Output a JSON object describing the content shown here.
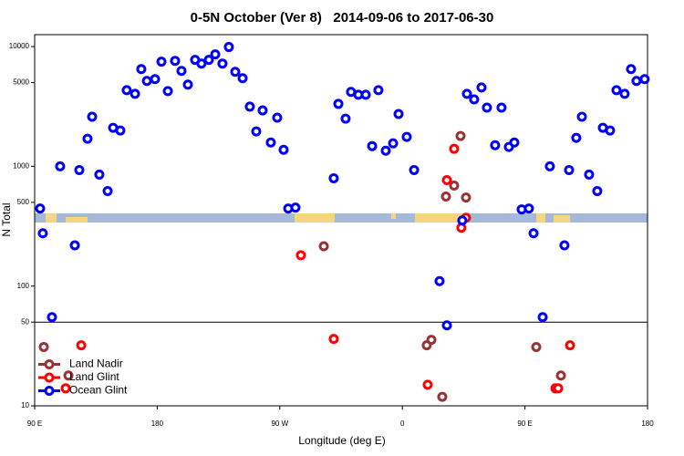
{
  "chart_data": {
    "type": "scatter",
    "title": "0-5N October (Ver 8)   2014-09-06 to 2017-06-30",
    "x_label": "Longitude (deg E)",
    "y_label": "N Total",
    "xlim": [
      90,
      540
    ],
    "xticks": [
      {
        "value": 90,
        "label": "90 E"
      },
      {
        "value": 180,
        "label": "180"
      },
      {
        "value": 270,
        "label": "90 W"
      },
      {
        "value": 360,
        "label": "0"
      },
      {
        "value": 450,
        "label": "90 E"
      },
      {
        "value": 540,
        "label": "180"
      }
    ],
    "ylim": [
      10,
      12570
    ],
    "y_log": true,
    "yticks": [
      10,
      50,
      100,
      500,
      1000,
      5000,
      10000
    ],
    "hline": 50,
    "legend": "lower left",
    "series": [
      {
        "name": "Land Nadir",
        "color": "#993333",
        "x": [
          96.7,
          114.8,
          302.3,
          377.9,
          381.3,
          389.3,
          392.0,
          398.0,
          402.7,
          406.7,
          458.3,
          476.4
        ],
        "values": [
          31,
          17.9,
          215,
          32,
          35.6,
          11.9,
          559,
          690,
          1790,
          548,
          31,
          17.9
        ]
      },
      {
        "name": "Land Glint",
        "color": "#ff0000",
        "x": [
          112.8,
          124.2,
          285.5,
          309.6,
          378.6,
          392.7,
          398.0,
          403.3,
          406.7,
          472.4,
          474.4,
          483.1
        ],
        "values": [
          14,
          32,
          181,
          36.2,
          15,
          767,
          1400,
          307,
          372,
          14,
          14,
          32
        ]
      },
      {
        "name": "Ocean Glint",
        "color": "#0000ff",
        "x": [
          94.0,
          96.0,
          102.7,
          108.7,
          119.5,
          122.8,
          128.8,
          132.2,
          137.5,
          143.6,
          147.6,
          152.9,
          157.6,
          163.7,
          168.3,
          172.4,
          178.4,
          183.1,
          187.8,
          193.1,
          197.8,
          202.5,
          207.8,
          212.5,
          217.9,
          222.6,
          227.9,
          232.6,
          237.3,
          242.7,
          248.0,
          252.7,
          257.4,
          263.4,
          268.1,
          272.8,
          276.2,
          281.5,
          309.6,
          313.0,
          318.3,
          322.3,
          327.7,
          333.1,
          337.8,
          342.4,
          347.8,
          353.2,
          357.2,
          363.2,
          368.6,
          387.3,
          392.7,
          404.0,
          407.4,
          412.7,
          418.1,
          422.1,
          428.1,
          432.8,
          438.2,
          442.2,
          447.6,
          452.9,
          456.3,
          463.0,
          468.3,
          479.0,
          482.4,
          487.7,
          491.8,
          497.1,
          503.1,
          507.2,
          512.5,
          517.2,
          523.2,
          527.9,
          531.9,
          537.9
        ],
        "values": [
          444,
          276,
          55,
          1000,
          219,
          931,
          1698,
          2594,
          853,
          621,
          2099,
          1991,
          4325,
          4027,
          6486,
          5164,
          5346,
          7476,
          4250,
          7600,
          6266,
          4808,
          7740,
          7210,
          7740,
          8610,
          7210,
          9910,
          6150,
          5440,
          3150,
          1955,
          2930,
          1580,
          2550,
          1373,
          444,
          452,
          795,
          3320,
          2500,
          4180,
          3960,
          3960,
          1475,
          4325,
          1350,
          1555,
          2735,
          1760,
          931,
          110,
          47,
          353,
          4027,
          3620,
          4560,
          3090,
          1500,
          3090,
          1450,
          1580,
          437,
          444,
          276,
          55,
          1000,
          219,
          931,
          1728,
          2594,
          853,
          621,
          2099,
          1991,
          4325,
          4027,
          6486,
          5164,
          5346
        ]
      }
    ]
  }
}
